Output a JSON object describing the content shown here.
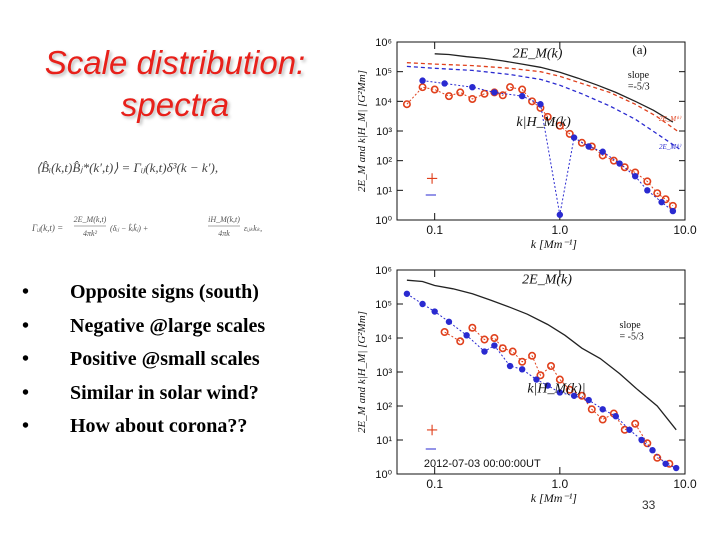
{
  "slide": {
    "title_line1": "Scale distribution:",
    "title_line2": "spectra",
    "page_number": "33",
    "bullet_marker": "•",
    "bullets": [
      "Opposite signs (south)",
      "Negative @large scales",
      "Positive @small scales",
      "Similar in solar wind?",
      "How about corona??"
    ],
    "equations": {
      "eq1_lhs": "⟨B̂ᵢ(k,t)B̂ⱼ*(k′,t)⟩ = Γᵢⱼ(k,t)δ³(k − k′),",
      "eq2_lhs": "Γᵢⱼ(k,t) =",
      "eq2_frac1_num": "2E_M(k,t)",
      "eq2_frac1_den": "4πk²",
      "eq2_term1": "(δᵢⱼ − k̂ᵢk̂ⱼ) +",
      "eq2_frac2_num": "iH_M(k,t)",
      "eq2_frac2_den": "4πk",
      "eq2_term2": "εᵢⱼₖkₖ,"
    }
  },
  "colors": {
    "title": "#e8201a",
    "red_series": "#e0401c",
    "blue_series": "#2a2ad0",
    "black_series": "#222222"
  },
  "chart_data": [
    {
      "type": "line",
      "panel_label": "(a)",
      "xscale": "log",
      "yscale": "log",
      "xlim": [
        0.05,
        10.0
      ],
      "ylim": [
        1,
        1000000
      ],
      "xticks": [
        0.1,
        1.0,
        10.0
      ],
      "xtick_labels": [
        "0.1",
        "1.0",
        "10.0"
      ],
      "yticks": [
        1,
        10,
        100,
        1000,
        10000,
        100000,
        1000000
      ],
      "ytick_labels": [
        "10⁰",
        "10¹",
        "10²",
        "10³",
        "10⁴",
        "10⁵",
        "10⁶"
      ],
      "xlabel": "k [Mm⁻¹]",
      "ylabel": "2E_M and k|H_M| [G²Mm]",
      "annotations": {
        "em_label": "2E_M(k)",
        "hm_label": "k|H_M(k)",
        "slope_label": "slope",
        "slope_value": "=-5/3",
        "plus": "+",
        "minus": "–",
        "curve_label_1": "2E_M⁽ᵗ⁾",
        "curve_label_2": "2E_M⁽ᵗ⁾"
      },
      "series": [
        {
          "role": "2E_M(k) black",
          "x": [
            0.1,
            0.13,
            0.18,
            0.25,
            0.35,
            0.5,
            0.7,
            1.0,
            1.4,
            2.0,
            2.8,
            4.0,
            5.6,
            8.0
          ],
          "y": [
            400000,
            380000,
            320000,
            280000,
            230000,
            180000,
            140000,
            95000,
            60000,
            35000,
            20000,
            10000,
            5000,
            2000
          ]
        },
        {
          "role": "red dashed",
          "x": [
            0.06,
            0.1,
            0.2,
            0.4,
            0.7,
            1.0,
            1.5,
            2.5,
            4.0,
            6.0,
            9.0
          ],
          "y": [
            200000,
            180000,
            160000,
            130000,
            100000,
            70000,
            40000,
            20000,
            8000,
            3000,
            900
          ]
        },
        {
          "role": "blue dashed",
          "x": [
            0.06,
            0.1,
            0.2,
            0.4,
            0.7,
            1.0,
            1.5,
            2.5,
            4.0,
            6.0,
            9.0
          ],
          "y": [
            150000,
            130000,
            110000,
            80000,
            55000,
            35000,
            18000,
            7000,
            2500,
            800,
            250
          ]
        },
        {
          "role": "k|H_M| positive (red)",
          "x": [
            0.06,
            0.08,
            0.1,
            0.13,
            0.16,
            0.2,
            0.25,
            0.3,
            0.35,
            0.4,
            0.5,
            0.6,
            0.7,
            0.8,
            1.0,
            1.2,
            1.5,
            1.8,
            2.2,
            2.7,
            3.3,
            4.0,
            5.0,
            6.0,
            7.0,
            8.0
          ],
          "y": [
            8000,
            30000,
            25000,
            15000,
            20000,
            12000,
            18000,
            20000,
            16000,
            30000,
            25000,
            10000,
            6000,
            3000,
            1500,
            800,
            400,
            300,
            150,
            100,
            60,
            40,
            20,
            8,
            5,
            3
          ]
        },
        {
          "role": "k|H_M| negative (blue)",
          "x": [
            0.08,
            0.12,
            0.2,
            0.3,
            0.5,
            0.7,
            1.0,
            1.3,
            1.7,
            2.2,
            3.0,
            4.0,
            5.0,
            6.5,
            8.0
          ],
          "y": [
            50000,
            40000,
            30000,
            20000,
            15000,
            8000,
            1.5,
            600,
            300,
            200,
            80,
            30,
            10,
            4,
            2
          ]
        }
      ]
    },
    {
      "type": "line",
      "panel_label": "",
      "xscale": "log",
      "yscale": "log",
      "xlim": [
        0.05,
        10.0
      ],
      "ylim": [
        1,
        1000000
      ],
      "xticks": [
        0.1,
        1.0,
        10.0
      ],
      "xtick_labels": [
        "0.1",
        "1.0",
        "10.0"
      ],
      "yticks": [
        1,
        10,
        100,
        1000,
        10000,
        100000,
        1000000
      ],
      "ytick_labels": [
        "10⁰",
        "10¹",
        "10²",
        "10³",
        "10⁴",
        "10⁵",
        "10⁶"
      ],
      "xlabel": "k [Mm⁻¹]",
      "ylabel": "2E_M and k|H_M| [G²Mm]",
      "annotations": {
        "em_label": "2E_M(k)",
        "hm_label": "k|H_M(k)|",
        "slope_label": "slope",
        "slope_value": "= -5/3",
        "plus": "+",
        "minus": "–",
        "timestamp": "2012-07-03 00:00:00UT"
      },
      "series": [
        {
          "role": "2E_M(k) black",
          "x": [
            0.06,
            0.08,
            0.1,
            0.14,
            0.2,
            0.28,
            0.4,
            0.55,
            0.8,
            1.1,
            1.5,
            2.1,
            3.0,
            4.2,
            6.0,
            8.5
          ],
          "y": [
            500000,
            460000,
            350000,
            280000,
            200000,
            130000,
            80000,
            50000,
            25000,
            12000,
            5000,
            2500,
            900,
            300,
            100,
            20
          ]
        },
        {
          "role": "k|H_M| positive (red)",
          "x": [
            0.12,
            0.16,
            0.2,
            0.25,
            0.3,
            0.35,
            0.42,
            0.5,
            0.6,
            0.7,
            0.85,
            1.0,
            1.2,
            1.5,
            1.8,
            2.2,
            2.7,
            3.3,
            4.0,
            5.0,
            6.0,
            7.5
          ],
          "y": [
            15000,
            8000,
            20000,
            9000,
            10000,
            5000,
            4000,
            2000,
            3000,
            800,
            1500,
            600,
            300,
            200,
            80,
            40,
            60,
            20,
            30,
            8,
            3,
            2
          ]
        },
        {
          "role": "k|H_M| negative (blue)",
          "x": [
            0.06,
            0.08,
            0.1,
            0.13,
            0.18,
            0.25,
            0.3,
            0.4,
            0.5,
            0.65,
            0.8,
            1.0,
            1.3,
            1.7,
            2.2,
            2.8,
            3.6,
            4.5,
            5.5,
            7.0,
            8.5
          ],
          "y": [
            200000,
            100000,
            60000,
            30000,
            12000,
            4000,
            6000,
            1500,
            1200,
            600,
            400,
            250,
            200,
            150,
            80,
            50,
            20,
            10,
            5,
            2,
            1.5
          ]
        }
      ]
    }
  ]
}
